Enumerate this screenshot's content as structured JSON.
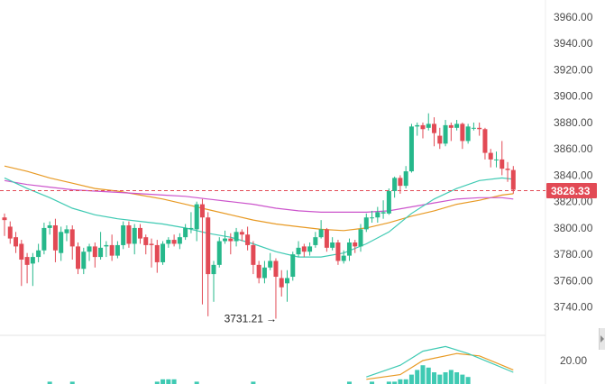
{
  "chart_data": {
    "type": "candlestick",
    "y_axis": {
      "range": [
        3722,
        3965
      ],
      "ticks": [
        "3960.00",
        "3940.00",
        "3920.00",
        "3900.00",
        "3880.00",
        "3860.00",
        "3840.00",
        "3820.00",
        "3800.00",
        "3780.00",
        "3760.00",
        "3740.00"
      ],
      "tick_values": [
        3960,
        3940,
        3920,
        3900,
        3880,
        3860,
        3840,
        3820,
        3800,
        3780,
        3760,
        3740
      ],
      "position": "right"
    },
    "last_price": 3828.33,
    "last_price_label": "3828.33",
    "min_annotation": {
      "text": "3731.21",
      "value": 3731.21,
      "index": 48
    },
    "candles": [
      [
        3808,
        3806,
        3811,
        3794
      ],
      [
        3801,
        3792,
        3805,
        3788
      ],
      [
        3793,
        3786,
        3797,
        3781
      ],
      [
        3788,
        3776,
        3791,
        3756
      ],
      [
        3778,
        3772,
        3781,
        3758
      ],
      [
        3773,
        3778,
        3781,
        3756
      ],
      [
        3778,
        3783,
        3788,
        3774
      ],
      [
        3783,
        3800,
        3804,
        3780
      ],
      [
        3800,
        3802,
        3805,
        3795
      ],
      [
        3802,
        3783,
        3807,
        3774
      ],
      [
        3781,
        3797,
        3801,
        3775
      ],
      [
        3796,
        3799,
        3802,
        3790
      ],
      [
        3799,
        3786,
        3802,
        3776
      ],
      [
        3786,
        3769,
        3789,
        3765
      ],
      [
        3769,
        3782,
        3785,
        3765
      ],
      [
        3782,
        3786,
        3788,
        3775
      ],
      [
        3786,
        3778,
        3789,
        3770
      ],
      [
        3778,
        3785,
        3797,
        3776
      ],
      [
        3786,
        3787,
        3790,
        3778
      ],
      [
        3787,
        3779,
        3795,
        3775
      ],
      [
        3779,
        3787,
        3790,
        3777
      ],
      [
        3787,
        3802,
        3805,
        3784
      ],
      [
        3802,
        3788,
        3805,
        3785
      ],
      [
        3788,
        3800,
        3803,
        3780
      ],
      [
        3800,
        3792,
        3803,
        3788
      ],
      [
        3793,
        3787,
        3795,
        3780
      ],
      [
        3788,
        3787,
        3792,
        3770
      ],
      [
        3787,
        3774,
        3791,
        3766
      ],
      [
        3774,
        3788,
        3790,
        3772
      ],
      [
        3788,
        3791,
        3793,
        3785
      ],
      [
        3791,
        3788,
        3795,
        3786
      ],
      [
        3788,
        3793,
        3796,
        3784
      ],
      [
        3793,
        3800,
        3803,
        3791
      ],
      [
        3800,
        3800,
        3812,
        3796
      ],
      [
        3799,
        3818,
        3820,
        3790
      ],
      [
        3818,
        3808,
        3822,
        3742
      ],
      [
        3808,
        3765,
        3812,
        3733
      ],
      [
        3765,
        3772,
        3775,
        3744
      ],
      [
        3772,
        3790,
        3793,
        3770
      ],
      [
        3790,
        3792,
        3798,
        3788
      ],
      [
        3792,
        3790,
        3796,
        3780
      ],
      [
        3790,
        3797,
        3800,
        3786
      ],
      [
        3797,
        3795,
        3799,
        3790
      ],
      [
        3795,
        3787,
        3801,
        3783
      ],
      [
        3787,
        3772,
        3790,
        3765
      ],
      [
        3772,
        3762,
        3775,
        3758
      ],
      [
        3762,
        3770,
        3775,
        3758
      ],
      [
        3770,
        3775,
        3781,
        3768
      ],
      [
        3775,
        3763,
        3777,
        3731.21
      ],
      [
        3762,
        3755,
        3768,
        3748
      ],
      [
        3758,
        3762,
        3768,
        3744
      ],
      [
        3763,
        3780,
        3782,
        3760
      ],
      [
        3780,
        3785,
        3790,
        3778
      ],
      [
        3786,
        3782,
        3788,
        3778
      ],
      [
        3782,
        3786,
        3789,
        3779
      ],
      [
        3787,
        3793,
        3797,
        3785
      ],
      [
        3793,
        3799,
        3806,
        3792
      ],
      [
        3799,
        3785,
        3800,
        3782
      ],
      [
        3785,
        3789,
        3793,
        3783
      ],
      [
        3789,
        3775,
        3791,
        3772
      ],
      [
        3775,
        3779,
        3783,
        3773
      ],
      [
        3779,
        3789,
        3792,
        3775
      ],
      [
        3789,
        3786,
        3791,
        3781
      ],
      [
        3786,
        3799,
        3803,
        3782
      ],
      [
        3799,
        3808,
        3811,
        3797
      ],
      [
        3808,
        3808,
        3813,
        3804
      ],
      [
        3808,
        3812,
        3816,
        3804
      ],
      [
        3811,
        3812,
        3821,
        3807
      ],
      [
        3811,
        3828,
        3830,
        3810
      ],
      [
        3828,
        3838,
        3839,
        3823
      ],
      [
        3838,
        3832,
        3840,
        3826
      ],
      [
        3832,
        3843,
        3847,
        3830
      ],
      [
        3843,
        3877,
        3879,
        3842
      ],
      [
        3877,
        3878,
        3880,
        3870
      ],
      [
        3878,
        3875,
        3880,
        3868
      ],
      [
        3876,
        3879,
        3887,
        3874
      ],
      [
        3879,
        3872,
        3884,
        3862
      ],
      [
        3870,
        3864,
        3876,
        3860
      ],
      [
        3864,
        3878,
        3882,
        3862
      ],
      [
        3878,
        3876,
        3880,
        3866
      ],
      [
        3876,
        3879,
        3882,
        3874
      ],
      [
        3879,
        3866,
        3880,
        3860
      ],
      [
        3866,
        3877,
        3879,
        3864
      ],
      [
        3876,
        3876,
        3880,
        3874
      ],
      [
        3876,
        3875,
        3880,
        3870
      ],
      [
        3875,
        3857,
        3876,
        3852
      ],
      [
        3857,
        3852,
        3860,
        3846
      ],
      [
        3852,
        3852,
        3858,
        3846
      ],
      [
        3852,
        3845,
        3866,
        3840
      ],
      [
        3845,
        3844,
        3850,
        3835
      ],
      [
        3844,
        3829,
        3847,
        3826
      ]
    ],
    "series": [
      {
        "color": "#e89a24",
        "values": [
          [
            0,
            3847
          ],
          [
            4,
            3843
          ],
          [
            8,
            3838
          ],
          [
            12,
            3834
          ],
          [
            16,
            3830
          ],
          [
            20,
            3828
          ],
          [
            24,
            3825
          ],
          [
            28,
            3822
          ],
          [
            32,
            3818
          ],
          [
            36,
            3814
          ],
          [
            40,
            3810
          ],
          [
            44,
            3806
          ],
          [
            48,
            3803
          ],
          [
            52,
            3801
          ],
          [
            56,
            3799
          ],
          [
            60,
            3798
          ],
          [
            64,
            3800
          ],
          [
            68,
            3804
          ],
          [
            72,
            3809
          ],
          [
            76,
            3813
          ],
          [
            80,
            3818
          ],
          [
            84,
            3821
          ],
          [
            88,
            3825
          ],
          [
            90,
            3826
          ]
        ]
      },
      {
        "color": "#cc55cc",
        "values": [
          [
            0,
            3836
          ],
          [
            4,
            3833
          ],
          [
            8,
            3831
          ],
          [
            12,
            3829
          ],
          [
            16,
            3828
          ],
          [
            20,
            3827
          ],
          [
            24,
            3826
          ],
          [
            28,
            3825
          ],
          [
            32,
            3824
          ],
          [
            36,
            3822
          ],
          [
            40,
            3820
          ],
          [
            44,
            3818
          ],
          [
            48,
            3815
          ],
          [
            52,
            3813
          ],
          [
            56,
            3812
          ],
          [
            60,
            3812
          ],
          [
            64,
            3812
          ],
          [
            68,
            3813
          ],
          [
            72,
            3816
          ],
          [
            76,
            3819
          ],
          [
            80,
            3822
          ],
          [
            84,
            3823
          ],
          [
            88,
            3823
          ],
          [
            90,
            3822
          ]
        ]
      },
      {
        "color": "#3fcab3",
        "values": [
          [
            0,
            3838
          ],
          [
            4,
            3830
          ],
          [
            8,
            3823
          ],
          [
            12,
            3815
          ],
          [
            16,
            3810
          ],
          [
            20,
            3807
          ],
          [
            24,
            3805
          ],
          [
            28,
            3803
          ],
          [
            32,
            3800
          ],
          [
            36,
            3796
          ],
          [
            40,
            3793
          ],
          [
            44,
            3788
          ],
          [
            48,
            3782
          ],
          [
            52,
            3778
          ],
          [
            56,
            3778
          ],
          [
            60,
            3781
          ],
          [
            64,
            3788
          ],
          [
            68,
            3797
          ],
          [
            72,
            3811
          ],
          [
            76,
            3822
          ],
          [
            80,
            3830
          ],
          [
            84,
            3836
          ],
          [
            88,
            3838
          ],
          [
            90,
            3837
          ]
        ]
      }
    ],
    "volume": {
      "visible_tick_label": "20.00",
      "bars": [
        [
          8,
          1
        ],
        [
          12,
          1
        ],
        [
          27,
          1
        ],
        [
          28,
          2
        ],
        [
          29,
          2
        ],
        [
          30,
          2
        ],
        [
          34,
          1
        ],
        [
          44,
          1
        ],
        [
          61,
          1
        ],
        [
          65,
          1
        ],
        [
          68,
          1
        ],
        [
          69,
          1
        ],
        [
          70,
          2
        ],
        [
          71,
          2
        ],
        [
          72,
          4
        ],
        [
          73,
          6
        ],
        [
          74,
          8
        ],
        [
          75,
          7
        ],
        [
          76,
          5
        ],
        [
          77,
          4
        ],
        [
          78,
          5
        ],
        [
          79,
          6
        ],
        [
          80,
          5
        ],
        [
          81,
          4
        ],
        [
          82,
          3
        ]
      ],
      "lines": [
        {
          "color": "#e89a24",
          "values": [
            [
              64,
              2
            ],
            [
              70,
              4
            ],
            [
              74,
              10
            ],
            [
              80,
              13
            ],
            [
              84,
              12
            ],
            [
              88,
              8
            ],
            [
              90,
              6
            ]
          ]
        },
        {
          "color": "#3fcab3",
          "values": [
            [
              64,
              3
            ],
            [
              70,
              8
            ],
            [
              74,
              14
            ],
            [
              78,
              16
            ],
            [
              82,
              13
            ],
            [
              86,
              9
            ],
            [
              90,
              5
            ]
          ]
        }
      ]
    }
  }
}
